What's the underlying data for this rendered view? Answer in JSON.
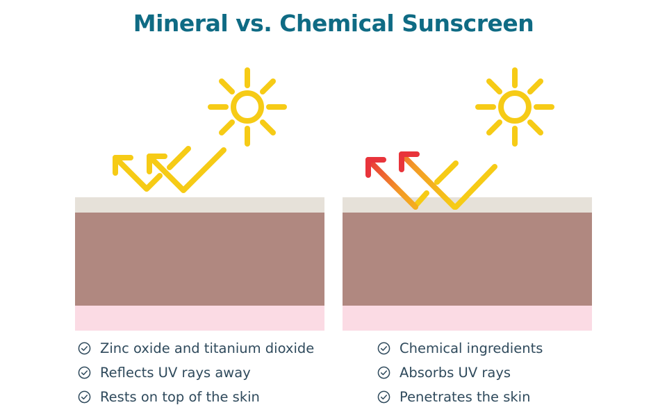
{
  "title": "Mineral vs. Chemical Sunscreen",
  "icons": {
    "sun": "sun-icon",
    "bullet": "check-circle-icon",
    "ray": "uv-ray-arrow-icon"
  },
  "colors": {
    "title": "#0f6b84",
    "text": "#2f4a5c",
    "sun": "#f6cb16",
    "ray_reflected": "#f6cb16",
    "ray_absorbed_start": "#f6cb16",
    "ray_absorbed_end": "#e8343b",
    "sunscreen_layer": "#e6e1d9",
    "skin_layer": "#b08880",
    "deep_layer": "#fbdbe4"
  },
  "panels": [
    {
      "id": "mineral",
      "behavior": "reflect",
      "points": [
        "Zinc oxide and titanium dioxide",
        "Reflects UV rays away",
        "Rests on top of the skin"
      ]
    },
    {
      "id": "chemical",
      "behavior": "absorb",
      "points": [
        "Chemical ingredients",
        "Absorbs UV rays",
        "Penetrates the skin"
      ]
    }
  ]
}
